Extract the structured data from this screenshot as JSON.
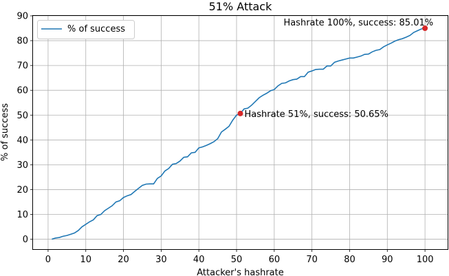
{
  "chart_data": {
    "type": "line",
    "title": "51% Attack",
    "xlabel": "Attacker's hashrate",
    "ylabel": "% of success",
    "xlim": [
      -4,
      106
    ],
    "ylim": [
      -4,
      90
    ],
    "x_ticks": [
      "0",
      "10",
      "20",
      "30",
      "40",
      "50",
      "60",
      "70",
      "80",
      "90",
      "100"
    ],
    "y_ticks": [
      "0",
      "10",
      "20",
      "30",
      "40",
      "50",
      "60",
      "70",
      "80",
      "90"
    ],
    "grid": true,
    "legend": {
      "placement": "top-left",
      "entries": [
        "% of success"
      ]
    },
    "series": [
      {
        "name": "% of success",
        "color": "#1f77b4",
        "x": [
          1,
          2,
          3,
          4,
          5,
          6,
          7,
          8,
          9,
          10,
          11,
          12,
          13,
          14,
          15,
          16,
          17,
          18,
          19,
          20,
          21,
          22,
          23,
          24,
          25,
          26,
          27,
          28,
          29,
          30,
          31,
          32,
          33,
          34,
          35,
          36,
          37,
          38,
          39,
          40,
          41,
          42,
          43,
          44,
          45,
          46,
          47,
          48,
          49,
          50,
          51,
          52,
          53,
          54,
          55,
          56,
          57,
          58,
          59,
          60,
          61,
          62,
          63,
          64,
          65,
          66,
          67,
          68,
          69,
          70,
          71,
          72,
          73,
          74,
          75,
          76,
          77,
          78,
          79,
          80,
          81,
          82,
          83,
          84,
          85,
          86,
          87,
          88,
          89,
          90,
          91,
          92,
          93,
          94,
          95,
          96,
          97,
          98,
          99,
          100
        ],
        "y": [
          0.0,
          0.5,
          0.7,
          1.2,
          1.5,
          2.0,
          2.5,
          3.5,
          5.0,
          6.0,
          7.0,
          7.8,
          9.5,
          10.0,
          11.5,
          12.5,
          13.5,
          15.0,
          15.5,
          16.8,
          17.5,
          18.0,
          19.3,
          20.5,
          21.7,
          22.2,
          22.3,
          22.3,
          24.5,
          25.5,
          27.5,
          28.5,
          30.2,
          30.5,
          31.5,
          33.0,
          33.2,
          34.8,
          35.0,
          36.8,
          37.2,
          37.8,
          38.5,
          39.3,
          40.5,
          43.2,
          44.3,
          45.5,
          48.0,
          50.0,
          50.65,
          52.5,
          52.8,
          54.0,
          55.5,
          57.0,
          58.0,
          58.8,
          59.8,
          60.3,
          61.8,
          62.8,
          63.0,
          63.8,
          64.3,
          64.5,
          65.5,
          65.5,
          67.3,
          67.8,
          68.4,
          68.5,
          68.5,
          69.8,
          69.8,
          71.3,
          71.8,
          72.2,
          72.6,
          73.0,
          73.0,
          73.4,
          73.8,
          74.5,
          74.6,
          75.5,
          76.1,
          76.4,
          77.5,
          78.3,
          79.0,
          79.8,
          80.4,
          80.8,
          81.4,
          82.1,
          83.3,
          84.0,
          84.7,
          85.01
        ]
      }
    ],
    "highlight_points": [
      {
        "x": 51,
        "y": 50.65,
        "color": "#d62728"
      },
      {
        "x": 100,
        "y": 85.01,
        "color": "#d62728"
      }
    ],
    "annotations": [
      {
        "x": 51,
        "y": 50.65,
        "text": "Hashrate 51%, success: 50.65%"
      },
      {
        "x": 100,
        "y": 85.01,
        "text": "Hashrate 100%, success: 85.01%"
      }
    ]
  }
}
